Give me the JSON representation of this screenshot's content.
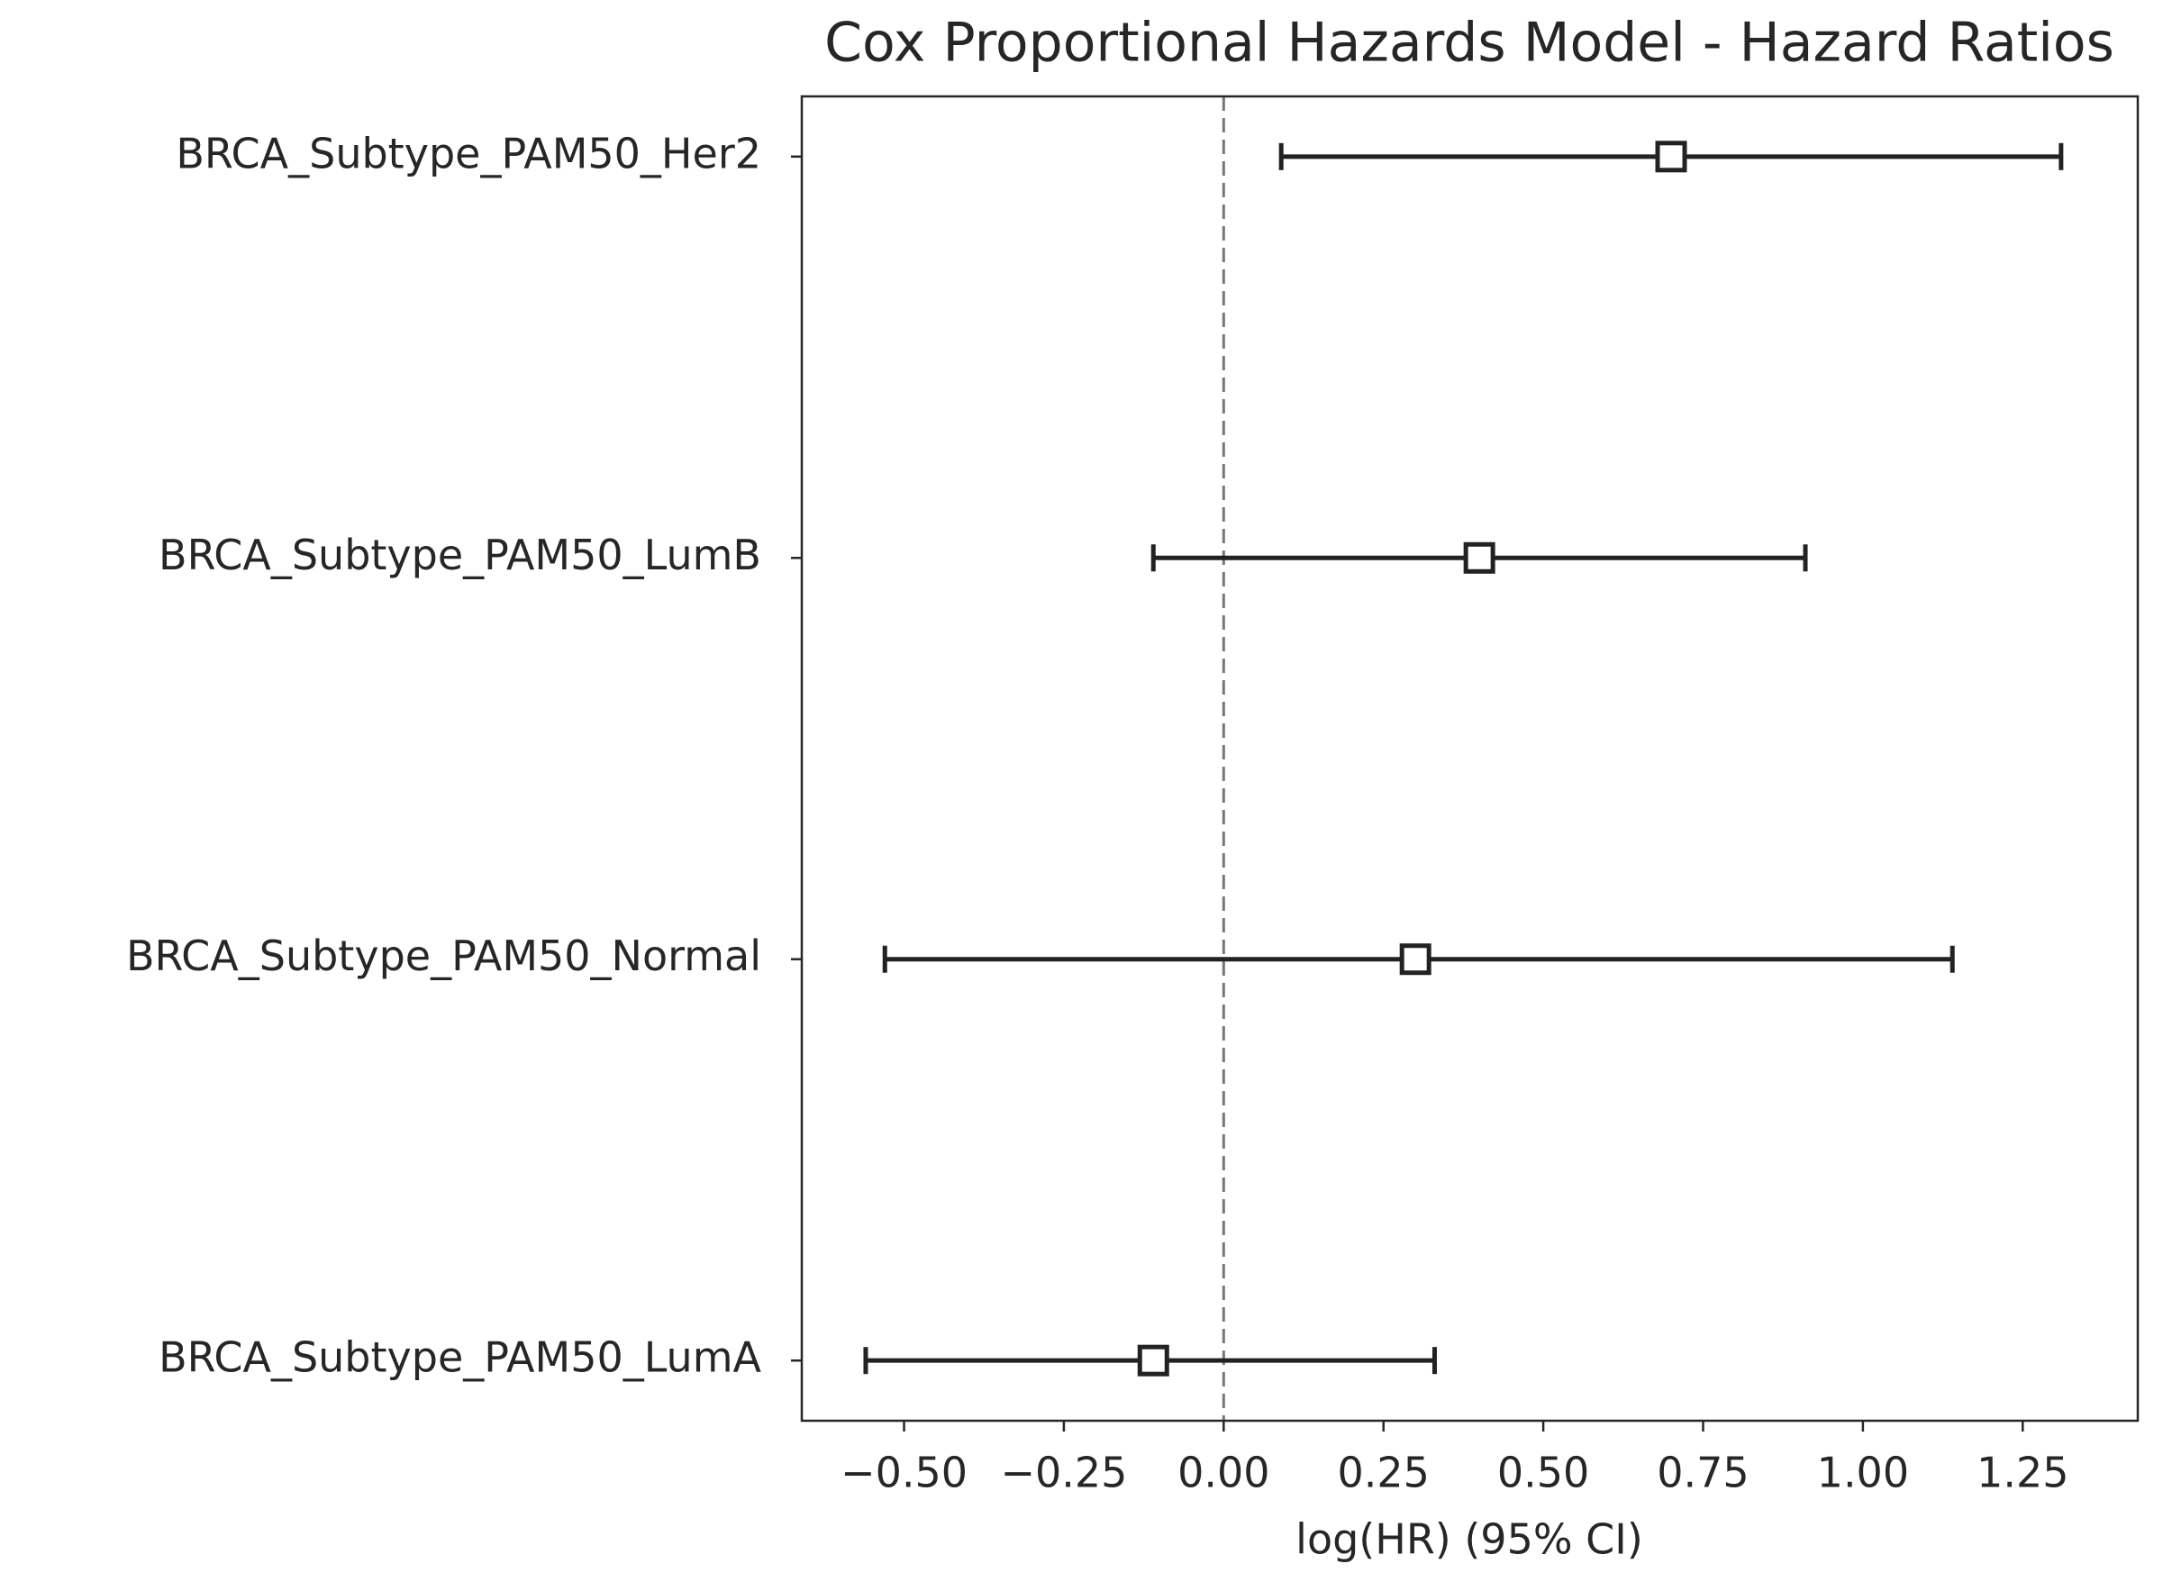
{
  "chart_data": {
    "type": "forest",
    "title": "Cox Proportional Hazards Model - Hazard Ratios",
    "xlabel": "log(HR) (95% CI)",
    "categories": [
      "BRCA_Subtype_PAM50_Her2",
      "BRCA_Subtype_PAM50_LumB",
      "BRCA_Subtype_PAM50_Normal",
      "BRCA_Subtype_PAM50_LumA"
    ],
    "values": [
      0.7,
      0.4,
      0.3,
      -0.11
    ],
    "lower": [
      0.09,
      -0.11,
      -0.53,
      -0.56
    ],
    "upper": [
      1.31,
      0.91,
      1.14,
      0.33
    ],
    "color": "#222222",
    "xlim": [
      -0.66,
      1.43
    ],
    "xticks": [
      {
        "value": -0.5,
        "label": "−0.50"
      },
      {
        "value": -0.25,
        "label": "−0.25"
      },
      {
        "value": 0,
        "label": "0.00"
      },
      {
        "value": 0.25,
        "label": "0.25"
      },
      {
        "value": 0.5,
        "label": "0.50"
      },
      {
        "value": 0.75,
        "label": "0.75"
      },
      {
        "value": 1,
        "label": "1.00"
      },
      {
        "value": 1.25,
        "label": "1.25"
      }
    ],
    "reference_line": 0
  }
}
